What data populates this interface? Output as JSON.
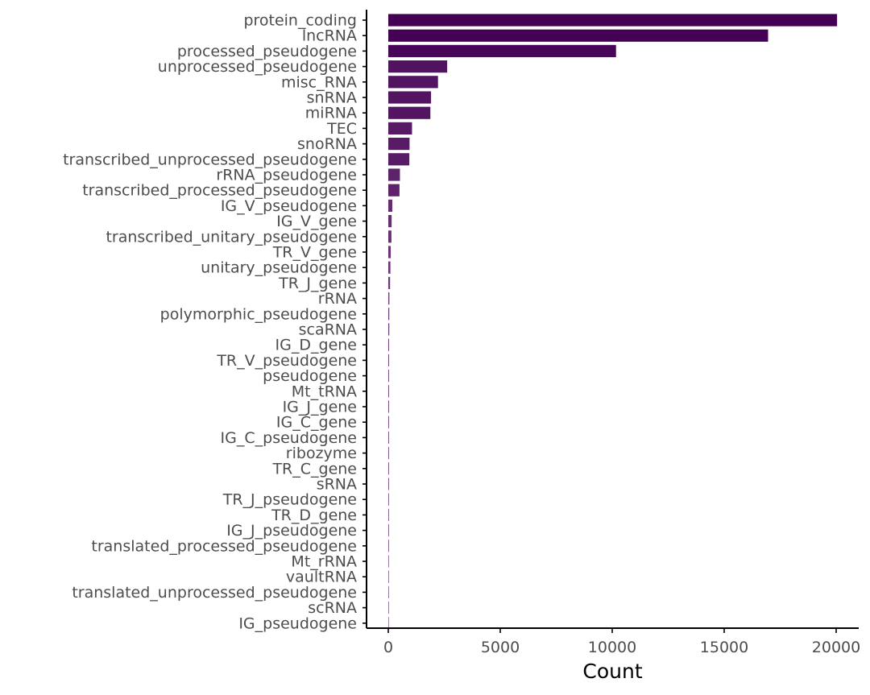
{
  "chart_data": {
    "type": "bar",
    "orientation": "horizontal",
    "title": "",
    "xlabel": "Count",
    "ylabel": "",
    "xlim": [
      0,
      20000
    ],
    "x_ticks": [
      0,
      5000,
      10000,
      15000,
      20000
    ],
    "grid": false,
    "legend": "none",
    "colors": {
      "high": "#440154",
      "low": "#e8dcea"
    },
    "categories": [
      "protein_coding",
      "lncRNA",
      "processed_pseudogene",
      "unprocessed_pseudogene",
      "misc_RNA",
      "snRNA",
      "miRNA",
      "TEC",
      "snoRNA",
      "transcribed_unprocessed_pseudogene",
      "rRNA_pseudogene",
      "transcribed_processed_pseudogene",
      "IG_V_pseudogene",
      "IG_V_gene",
      "transcribed_unitary_pseudogene",
      "TR_V_gene",
      "unitary_pseudogene",
      "TR_J_gene",
      "rRNA",
      "polymorphic_pseudogene",
      "scaRNA",
      "IG_D_gene",
      "TR_V_pseudogene",
      "pseudogene",
      "Mt_tRNA",
      "IG_J_gene",
      "IG_C_gene",
      "IG_C_pseudogene",
      "ribozyme",
      "TR_C_gene",
      "sRNA",
      "TR_J_pseudogene",
      "TR_D_gene",
      "IG_J_pseudogene",
      "translated_processed_pseudogene",
      "Mt_rRNA",
      "vaultRNA",
      "translated_unprocessed_pseudogene",
      "scRNA",
      "IG_pseudogene"
    ],
    "values": [
      20040,
      16960,
      10170,
      2630,
      2220,
      1910,
      1880,
      1060,
      950,
      940,
      520,
      500,
      180,
      150,
      140,
      110,
      95,
      80,
      50,
      45,
      45,
      35,
      30,
      20,
      20,
      20,
      15,
      10,
      10,
      10,
      10,
      5,
      5,
      5,
      5,
      2,
      2,
      2,
      2,
      1
    ]
  }
}
